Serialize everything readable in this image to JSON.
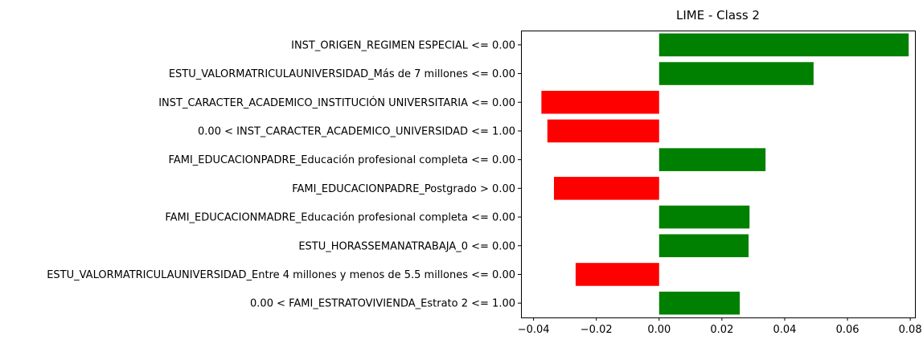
{
  "chart_data": {
    "type": "bar",
    "orientation": "horizontal",
    "title": "LIME - Class 2",
    "xlabel": "",
    "ylabel": "",
    "xlim": [
      -0.044,
      0.0815
    ],
    "xticks": [
      -0.04,
      -0.02,
      0.0,
      0.02,
      0.04,
      0.06,
      0.08
    ],
    "xtick_labels": [
      "−0.04",
      "−0.02",
      "0.00",
      "0.02",
      "0.04",
      "0.06",
      "0.08"
    ],
    "grid": false,
    "colors": {
      "positive": "#008000",
      "negative": "#ff0000"
    },
    "categories": [
      "INST_ORIGEN_REGIMEN ESPECIAL <= 0.00",
      "ESTU_VALORMATRICULAUNIVERSIDAD_Más de 7 millones <= 0.00",
      "INST_CARACTER_ACADEMICO_INSTITUCIÓN UNIVERSITARIA <= 0.00",
      "0.00 < INST_CARACTER_ACADEMICO_UNIVERSIDAD <= 1.00",
      "FAMI_EDUCACIONPADRE_Educación profesional completa <= 0.00",
      "FAMI_EDUCACIONPADRE_Postgrado > 0.00",
      "FAMI_EDUCACIONMADRE_Educación profesional completa <= 0.00",
      "ESTU_HORASSEMANATRABAJA_0 <= 0.00",
      "ESTU_VALORMATRICULAUNIVERSIDAD_Entre 4 millones y menos de 5.5 millones <= 0.00",
      "0.00 < FAMI_ESTRATOVIVIENDA_Estrato 2 <= 1.00"
    ],
    "values": [
      0.0795,
      0.0492,
      -0.0375,
      -0.0356,
      0.0339,
      -0.0335,
      0.0288,
      0.0285,
      -0.0266,
      0.0257
    ]
  }
}
